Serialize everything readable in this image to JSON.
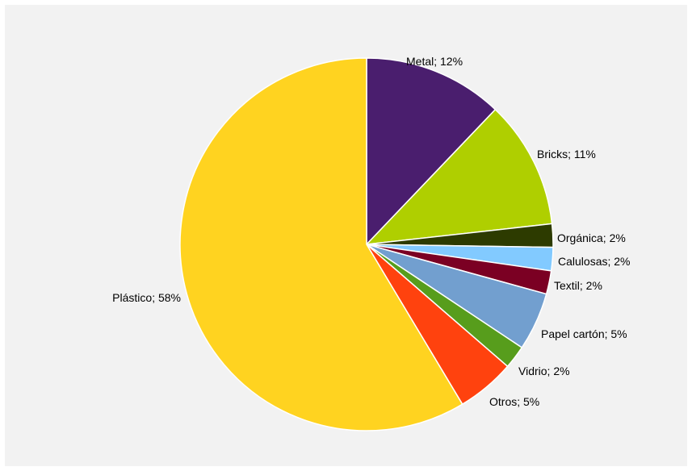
{
  "chart_data": {
    "type": "pie",
    "title": "",
    "legend": "none",
    "slices": [
      {
        "label": "Metal; 12%",
        "name": "Metal",
        "value": 12,
        "color": "#4a1e6e"
      },
      {
        "label": "Bricks; 11%",
        "name": "Bricks",
        "value": 11,
        "color": "#afcf00"
      },
      {
        "label": "Orgánica; 2%",
        "name": "Orgánica",
        "value": 2,
        "color": "#2d3b00"
      },
      {
        "label": "Calulosas; 2%",
        "name": "Calulosas",
        "value": 2,
        "color": "#82caff"
      },
      {
        "label": "Textil; 2%",
        "name": "Textil",
        "value": 2,
        "color": "#7b0023"
      },
      {
        "label": "Papel cartón; 5%",
        "name": "Papel cartón",
        "value": 5,
        "color": "#729fcf"
      },
      {
        "label": "Vidrio; 2%",
        "name": "Vidrio",
        "value": 2,
        "color": "#579d1c"
      },
      {
        "label": "Otros; 5%",
        "name": "Otros",
        "value": 5,
        "color": "#ff420e"
      },
      {
        "label": "Plástico; 58%",
        "name": "Plástico",
        "value": 58,
        "color": "#ffd320"
      }
    ]
  }
}
